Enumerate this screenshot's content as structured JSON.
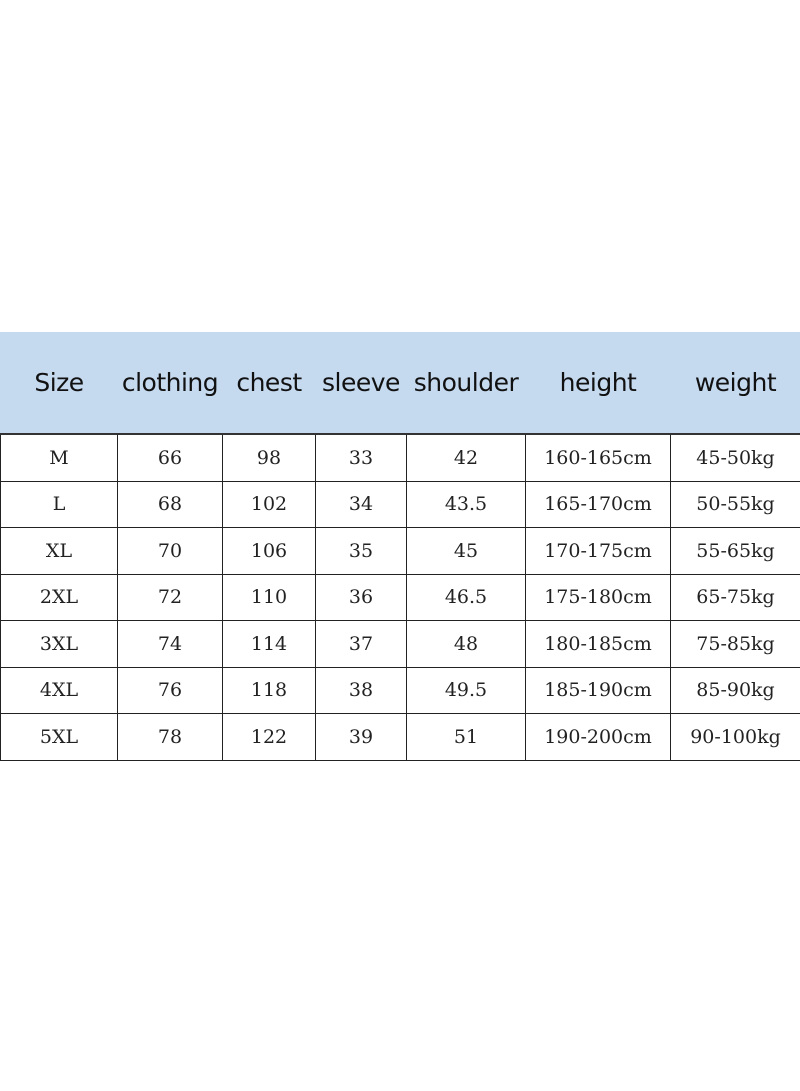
{
  "table": {
    "header_color": "#c5d9ef",
    "columns": [
      "Size",
      "clothing",
      "chest",
      "sleeve",
      "shoulder",
      "height",
      "weight"
    ],
    "rows": [
      [
        "M",
        "66",
        "98",
        "33",
        "42",
        "160-165cm",
        "45-50kg"
      ],
      [
        "L",
        "68",
        "102",
        "34",
        "43.5",
        "165-170cm",
        "50-55kg"
      ],
      [
        "XL",
        "70",
        "106",
        "35",
        "45",
        "170-175cm",
        "55-65kg"
      ],
      [
        "2XL",
        "72",
        "110",
        "36",
        "46.5",
        "175-180cm",
        "65-75kg"
      ],
      [
        "3XL",
        "74",
        "114",
        "37",
        "48",
        "180-185cm",
        "75-85kg"
      ],
      [
        "4XL",
        "76",
        "118",
        "38",
        "49.5",
        "185-190cm",
        "85-90kg"
      ],
      [
        "5XL",
        "78",
        "122",
        "39",
        "51",
        "190-200cm",
        "90-100kg"
      ]
    ]
  }
}
